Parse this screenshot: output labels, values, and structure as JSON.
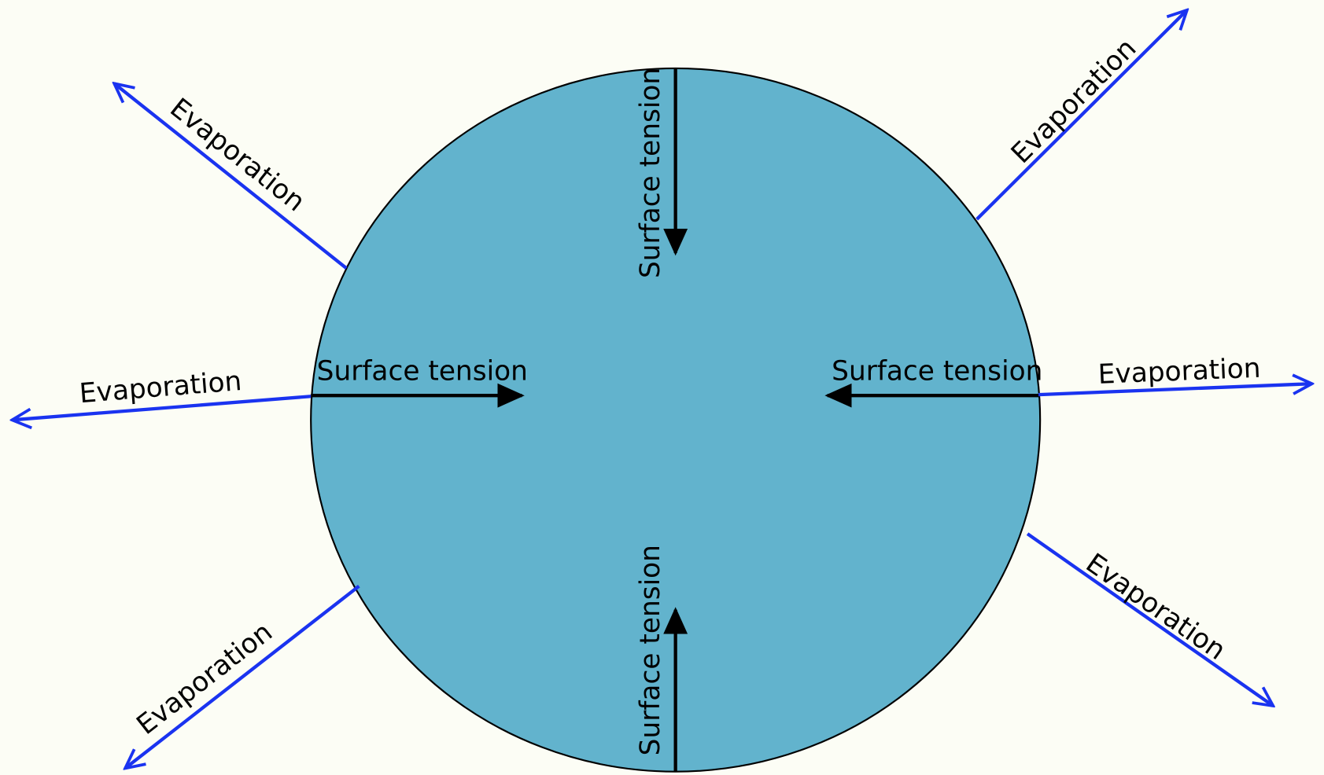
{
  "evaporation_labels": [
    "Evaporation",
    "Evaporation",
    "Evaporation",
    "Evaporation",
    "Evaporation",
    "Evaporation"
  ],
  "surface_tension_labels": [
    "Surface tension",
    "Surface tension",
    "Surface tension",
    "Surface tension"
  ]
}
